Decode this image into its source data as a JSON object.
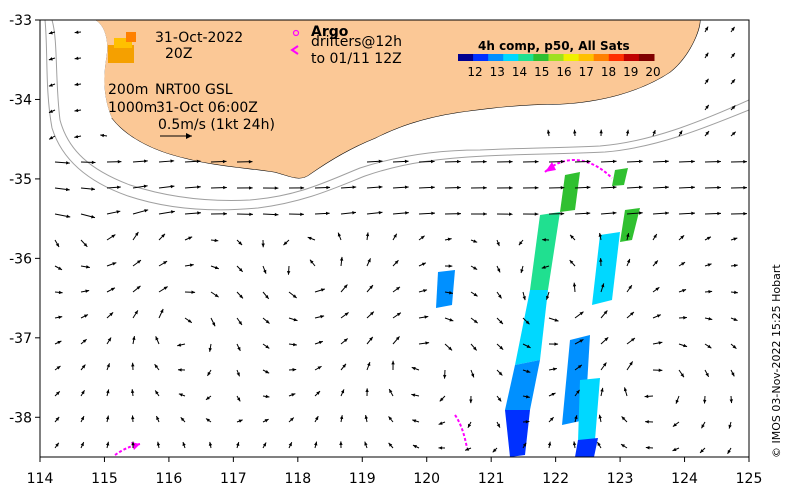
{
  "map": {
    "date_label": "31-Oct-2022",
    "time_label": "20Z",
    "isobath_200": "200m",
    "isobath_1000": "1000m",
    "product_label": "NRT00 GSL",
    "product_time": "31-Oct 06:00Z",
    "scale_label": "0.5m/s (1kt 24h)",
    "argo_label": "Argo",
    "drifter_label": "drifters@12h",
    "drifter_to_label": "to 01/11 12Z",
    "credit": "© IMOS 03-Nov-2022 15:25 Hobart",
    "x_ticks": [
      "114",
      "115",
      "116",
      "117",
      "118",
      "119",
      "120",
      "121",
      "122",
      "123",
      "124",
      "125"
    ],
    "y_ticks": [
      "-33",
      "-34",
      "-35",
      "-36",
      "-37",
      "-38"
    ],
    "lon_range": [
      114,
      125
    ],
    "lat_range": [
      -38.5,
      -33
    ]
  },
  "colorbar": {
    "title": "4h comp, p50, All Sats",
    "ticks": [
      "12",
      "13",
      "14",
      "15",
      "16",
      "17",
      "18",
      "19",
      "20"
    ],
    "colors": [
      "#00008f",
      "#0030ff",
      "#0090ff",
      "#00d8ff",
      "#20e090",
      "#30c030",
      "#a0e020",
      "#f0f000",
      "#ffc000",
      "#ff8000",
      "#ff3000",
      "#c00000",
      "#800000"
    ]
  },
  "colors": {
    "land": "#fbc896",
    "drifter": "#ff00ff",
    "isobath": "#a0a0a0"
  }
}
